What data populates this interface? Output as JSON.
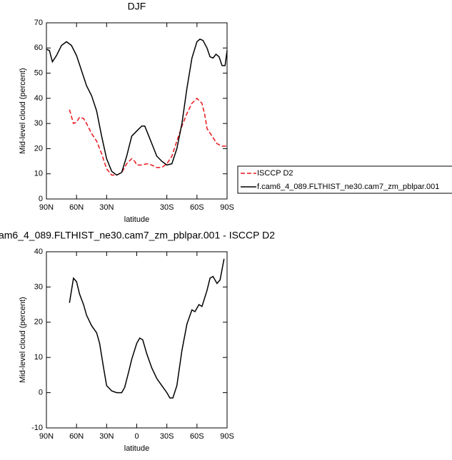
{
  "chart_data": [
    {
      "type": "line",
      "title": "DJF",
      "xlabel": "latitude",
      "ylabel": "Mid-level cloud (percent)",
      "xlim": [
        90,
        -90
      ],
      "ylim": [
        0,
        70
      ],
      "xticks": [
        {
          "value": 90,
          "label": "90N"
        },
        {
          "value": 60,
          "label": "60N"
        },
        {
          "value": 30,
          "label": "30N"
        },
        {
          "value": -30,
          "label": "30S"
        },
        {
          "value": -60,
          "label": "60S"
        },
        {
          "value": -90,
          "label": "90S"
        }
      ],
      "yticks": [
        0,
        10,
        20,
        30,
        40,
        50,
        60,
        70
      ],
      "legend": "right",
      "series": [
        {
          "name": "ISCCP D2",
          "color": "#e8141b",
          "dash": true,
          "x": [
            67,
            63,
            60,
            57,
            53,
            50,
            45,
            40,
            35,
            30,
            25,
            20,
            15,
            10,
            5,
            2,
            0,
            -5,
            -10,
            -15,
            -20,
            -25,
            -30,
            -35,
            -40,
            -45,
            -50,
            -55,
            -60,
            -65,
            -68,
            -70,
            -75,
            -80,
            -85,
            -90
          ],
          "values": [
            35.5,
            30,
            30.5,
            32.5,
            32,
            30,
            26,
            23,
            18,
            12,
            9.5,
            9.5,
            10.5,
            14,
            16,
            15,
            13.5,
            13.5,
            14,
            13.5,
            12.5,
            12.5,
            14,
            17,
            23,
            29,
            34,
            38,
            40,
            38,
            33,
            28,
            25,
            22,
            21,
            21
          ]
        },
        {
          "name": "f.cam6_4_089.FLTHIST_ne30.cam7_zm_pblpar.001",
          "color": "#000000",
          "dash": false,
          "x": [
            90,
            87,
            84,
            80,
            75,
            70,
            65,
            60,
            55,
            50,
            45,
            40,
            35,
            30,
            25,
            20,
            15,
            10,
            5,
            0,
            -5,
            -8,
            -12,
            -16,
            -20,
            -25,
            -30,
            -35,
            -40,
            -45,
            -50,
            -55,
            -60,
            -63,
            -66,
            -70,
            -73,
            -76,
            -79,
            -82,
            -85,
            -88,
            -90
          ],
          "values": [
            59.5,
            59,
            54.5,
            57,
            61,
            62.5,
            61,
            57,
            51,
            45,
            41,
            35,
            25,
            16,
            11,
            9.5,
            10.5,
            17,
            25,
            27,
            29,
            29,
            25,
            21,
            17,
            15,
            13.5,
            14,
            20,
            30,
            44,
            56,
            62.5,
            63.5,
            63,
            60,
            56.5,
            56,
            57.5,
            56.5,
            53,
            53,
            59
          ]
        }
      ]
    },
    {
      "type": "line",
      "title": "am6_4_089.FLTHIST_ne30.cam7_zm_pblpar.001 - ISCCP D2",
      "xlabel": "latitude",
      "ylabel": "Mid-level cloud (percent)",
      "xlim": [
        90,
        -90
      ],
      "ylim": [
        -10,
        40
      ],
      "xticks": [
        {
          "value": 90,
          "label": "90N"
        },
        {
          "value": 60,
          "label": "60N"
        },
        {
          "value": 30,
          "label": "30N"
        },
        0,
        {
          "value": -30,
          "label": "30S"
        },
        {
          "value": -60,
          "label": "60S"
        },
        {
          "value": -90,
          "label": "90S"
        }
      ],
      "yticks": [
        -10,
        0,
        10,
        20,
        30,
        40
      ],
      "series": [
        {
          "color": "#000000",
          "dash": false,
          "x": [
            67,
            63,
            60,
            57,
            53,
            50,
            45,
            40,
            37,
            33,
            30,
            25,
            20,
            15,
            12,
            8,
            5,
            0,
            -3,
            -6,
            -10,
            -15,
            -20,
            -25,
            -30,
            -33,
            -36,
            -40,
            -45,
            -50,
            -55,
            -58,
            -62,
            -65,
            -70,
            -73,
            -76,
            -80,
            -83,
            -87
          ],
          "values": [
            25.5,
            32.5,
            31.5,
            28,
            25,
            22,
            19,
            17,
            14,
            7,
            2,
            0.5,
            0,
            0,
            1.5,
            6,
            9.5,
            14,
            15.5,
            15,
            11,
            7,
            4,
            2,
            0,
            -1.5,
            -1.5,
            2,
            12,
            19.5,
            23.5,
            23,
            25,
            24.5,
            29,
            32.5,
            33,
            31,
            32,
            38
          ]
        }
      ]
    }
  ]
}
